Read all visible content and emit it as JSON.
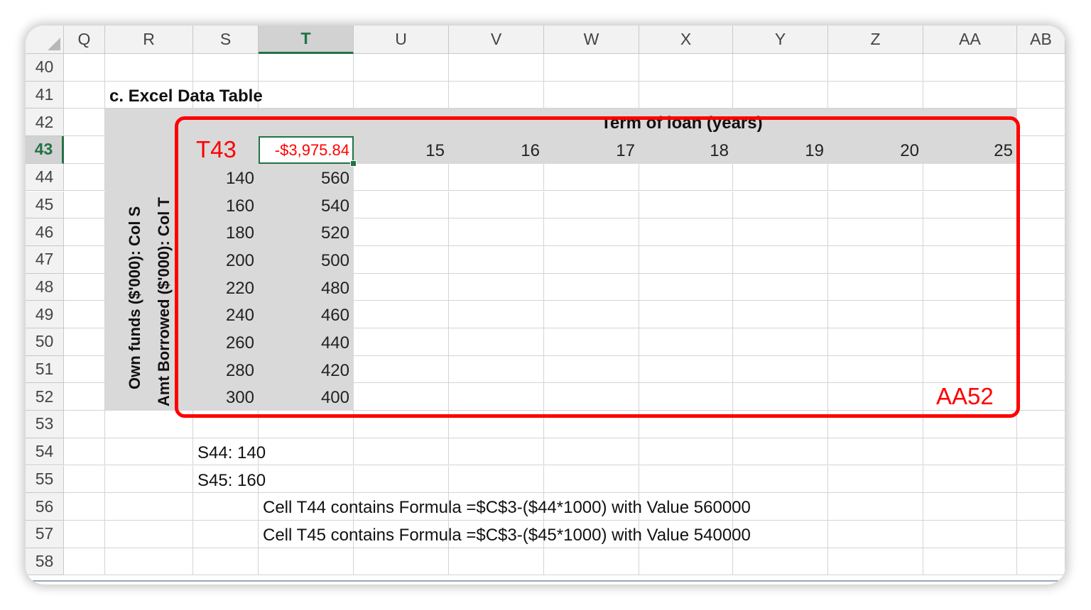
{
  "columns": [
    "Q",
    "R",
    "S",
    "T",
    "U",
    "V",
    "W",
    "X",
    "Y",
    "Z",
    "AA",
    "AB"
  ],
  "selected_column": "T",
  "rows": [
    "40",
    "41",
    "42",
    "43",
    "44",
    "45",
    "46",
    "47",
    "48",
    "49",
    "50",
    "51",
    "52",
    "53",
    "54",
    "55",
    "56",
    "57",
    "58"
  ],
  "selected_row": "43",
  "section_title": "c. Excel Data Table",
  "term_header": "Term of loan (years)",
  "terms": [
    "15",
    "16",
    "17",
    "18",
    "19",
    "20",
    "25"
  ],
  "corner_value": "-$3,975.84",
  "corner_value_color": "#ff0000",
  "own_funds_label": "Own funds ($'000): Col S",
  "amt_borrowed_label": "Amt Borrowed ($'000): Col T",
  "own_funds": [
    "140",
    "160",
    "180",
    "200",
    "220",
    "240",
    "260",
    "280",
    "300"
  ],
  "amt_borrowed": [
    "560",
    "540",
    "520",
    "500",
    "480",
    "460",
    "440",
    "420",
    "400"
  ],
  "notes": {
    "s44": "S44:  140",
    "s45": "S45:  160",
    "t44": "Cell T44 contains Formula =$C$3-($44*1000) with Value  560000",
    "t45": "Cell T45 contains Formula =$C$3-($45*1000) with Value  540000"
  },
  "annotations": {
    "start_label": "T43",
    "end_label": "AA52",
    "color": "#ff0000"
  }
}
